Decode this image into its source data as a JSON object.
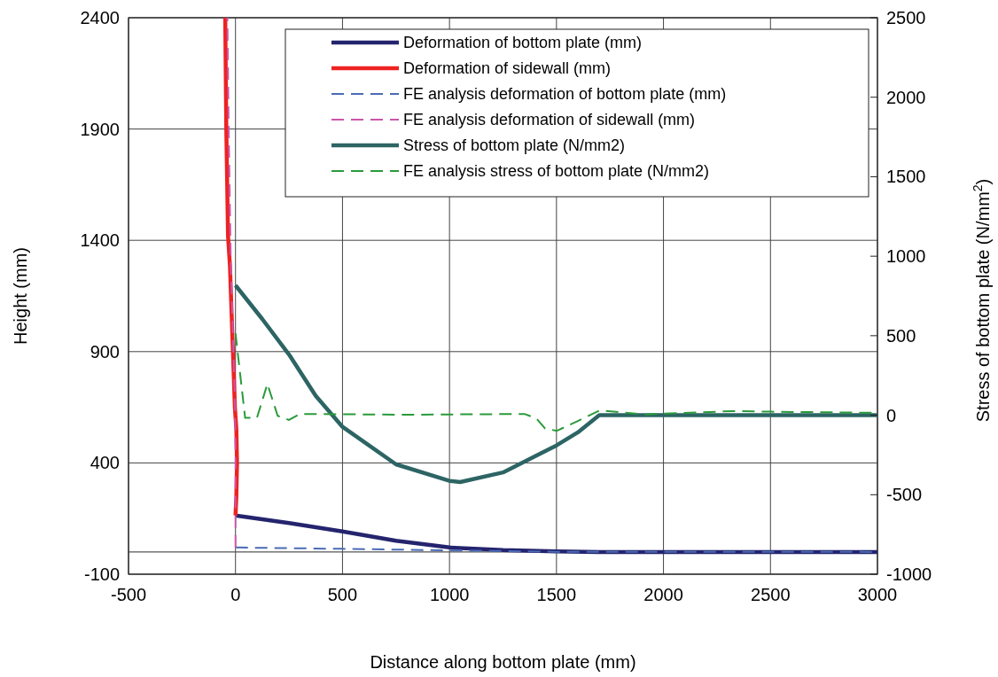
{
  "chart_data": {
    "type": "line",
    "xlabel": "Distance along bottom plate (mm)",
    "ylabel": "Height (mm)",
    "y2label": "Stress of bottom plate (N/mm$^{2}$)",
    "xlim": [
      -500,
      3000
    ],
    "xticks": [
      -500,
      0,
      500,
      1000,
      1500,
      2000,
      2500,
      3000
    ],
    "ylim": [
      -100,
      2400
    ],
    "yticks": [
      -100,
      400,
      900,
      1400,
      1900,
      2400
    ],
    "y2lim": [
      -1000,
      2500
    ],
    "y2ticks": [
      -1000,
      -500,
      0,
      500,
      1000,
      1500,
      2000,
      2500
    ],
    "grid": true,
    "legend": "top right",
    "ref_lines": [
      {
        "axis": "y",
        "value": 0,
        "color": "#555555"
      }
    ],
    "series": [
      {
        "name": "Deformation of bottom plate (mm)",
        "color": "#24246e",
        "line_style": "solid",
        "x": [
          0,
          250,
          500,
          750,
          1000,
          1250,
          1500,
          1700,
          3000
        ],
        "values": [
          164,
          130,
          92,
          50,
          20,
          8,
          3,
          0,
          0
        ]
      },
      {
        "name": "Deformation of sidewall (mm)",
        "color": "#ee2222",
        "line_style": "solid",
        "x": [
          0,
          4,
          7,
          4,
          -3,
          -12,
          -26,
          -35,
          -43,
          -48
        ],
        "values": [
          164,
          250,
          400,
          550,
          650,
          900,
          1286,
          1420,
          1900,
          2400
        ]
      },
      {
        "name": "FE analysis deformation of bottom plate (mm)",
        "color": "#4a6bb5",
        "line_style": "dashed",
        "x": [
          0,
          500,
          1000,
          1500,
          3000
        ],
        "values": [
          20,
          14,
          7,
          1,
          0
        ]
      },
      {
        "name": "FE analysis deformation of sidewall (mm)",
        "color": "#cc55aa",
        "line_style": "dashed",
        "x": [
          0,
          0,
          -2,
          -10,
          -22,
          -32,
          -38
        ],
        "values": [
          20,
          400,
          650,
          900,
          1300,
          1900,
          2400
        ]
      },
      {
        "name": "Stress of bottom plate (N/mm2)",
        "color": "#2d6464",
        "line_style": "solid",
        "axis": "y2",
        "x": [
          0,
          125,
          250,
          375,
          500,
          750,
          1000,
          1050,
          1250,
          1500,
          1600,
          1700,
          3000
        ],
        "values": [
          817,
          605,
          382,
          122,
          -73,
          -309,
          -413,
          -420,
          -360,
          -190,
          -108,
          0,
          0
        ]
      },
      {
        "name": "FE analysis stress of bottom plate (N/mm2)",
        "color": "#2a9a3a",
        "line_style": "dashed",
        "axis": "y2",
        "x": [
          0,
          45,
          100,
          149,
          197,
          250,
          301,
          800,
          1350,
          1406,
          1447,
          1502,
          1600,
          1702,
          1910,
          2324,
          2503,
          3000
        ],
        "values": [
          515,
          -17,
          -17,
          197,
          -4,
          -30,
          8,
          3,
          8,
          -20,
          -84,
          -98,
          -36,
          30,
          5,
          26,
          22,
          15
        ]
      }
    ]
  }
}
